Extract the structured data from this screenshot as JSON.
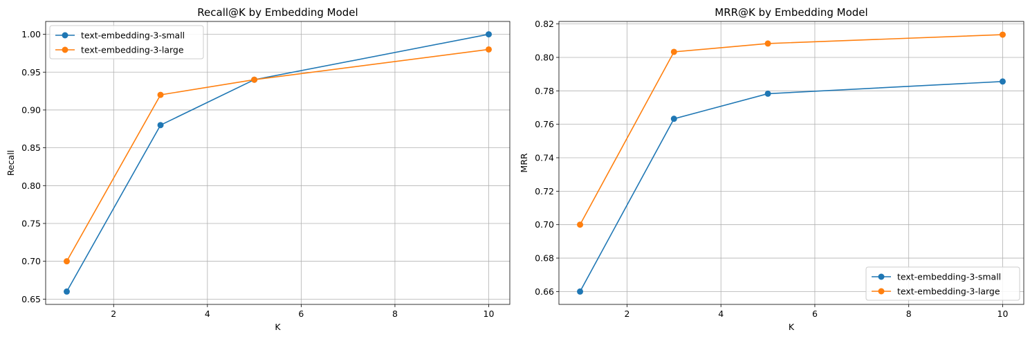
{
  "chart_data": [
    {
      "type": "line",
      "title": "Recall@K by Embedding Model",
      "xlabel": "K",
      "ylabel": "Recall",
      "x": [
        1,
        3,
        5,
        10
      ],
      "xlim": [
        0.55,
        10.45
      ],
      "ylim": [
        0.643,
        1.017
      ],
      "xticks": [
        2,
        4,
        6,
        8,
        10
      ],
      "yticks": [
        0.65,
        0.7,
        0.75,
        0.8,
        0.85,
        0.9,
        0.95,
        1.0
      ],
      "ytick_labels": [
        "0.65",
        "0.70",
        "0.75",
        "0.80",
        "0.85",
        "0.90",
        "0.95",
        "1.00"
      ],
      "grid": true,
      "legend_position": "upper-left",
      "series": [
        {
          "name": "text-embedding-3-small",
          "color": "#1f77b4",
          "values": [
            0.66,
            0.88,
            0.94,
            1.0
          ]
        },
        {
          "name": "text-embedding-3-large",
          "color": "#ff7f0e",
          "values": [
            0.7,
            0.92,
            0.94,
            0.98
          ]
        }
      ]
    },
    {
      "type": "line",
      "title": "MRR@K by Embedding Model",
      "xlabel": "K",
      "ylabel": "MRR",
      "x": [
        1,
        3,
        5,
        10
      ],
      "xlim": [
        0.55,
        10.45
      ],
      "ylim": [
        0.6523,
        0.8215
      ],
      "xticks": [
        2,
        4,
        6,
        8,
        10
      ],
      "yticks": [
        0.66,
        0.68,
        0.7,
        0.72,
        0.74,
        0.76,
        0.78,
        0.8,
        0.82
      ],
      "ytick_labels": [
        "0.66",
        "0.68",
        "0.70",
        "0.72",
        "0.74",
        "0.76",
        "0.78",
        "0.80",
        "0.82"
      ],
      "grid": true,
      "legend_position": "lower-right",
      "series": [
        {
          "name": "text-embedding-3-small",
          "color": "#1f77b4",
          "values": [
            0.66,
            0.7633,
            0.7783,
            0.7856
          ]
        },
        {
          "name": "text-embedding-3-large",
          "color": "#ff7f0e",
          "values": [
            0.7,
            0.8033,
            0.8083,
            0.8136
          ]
        }
      ]
    }
  ]
}
